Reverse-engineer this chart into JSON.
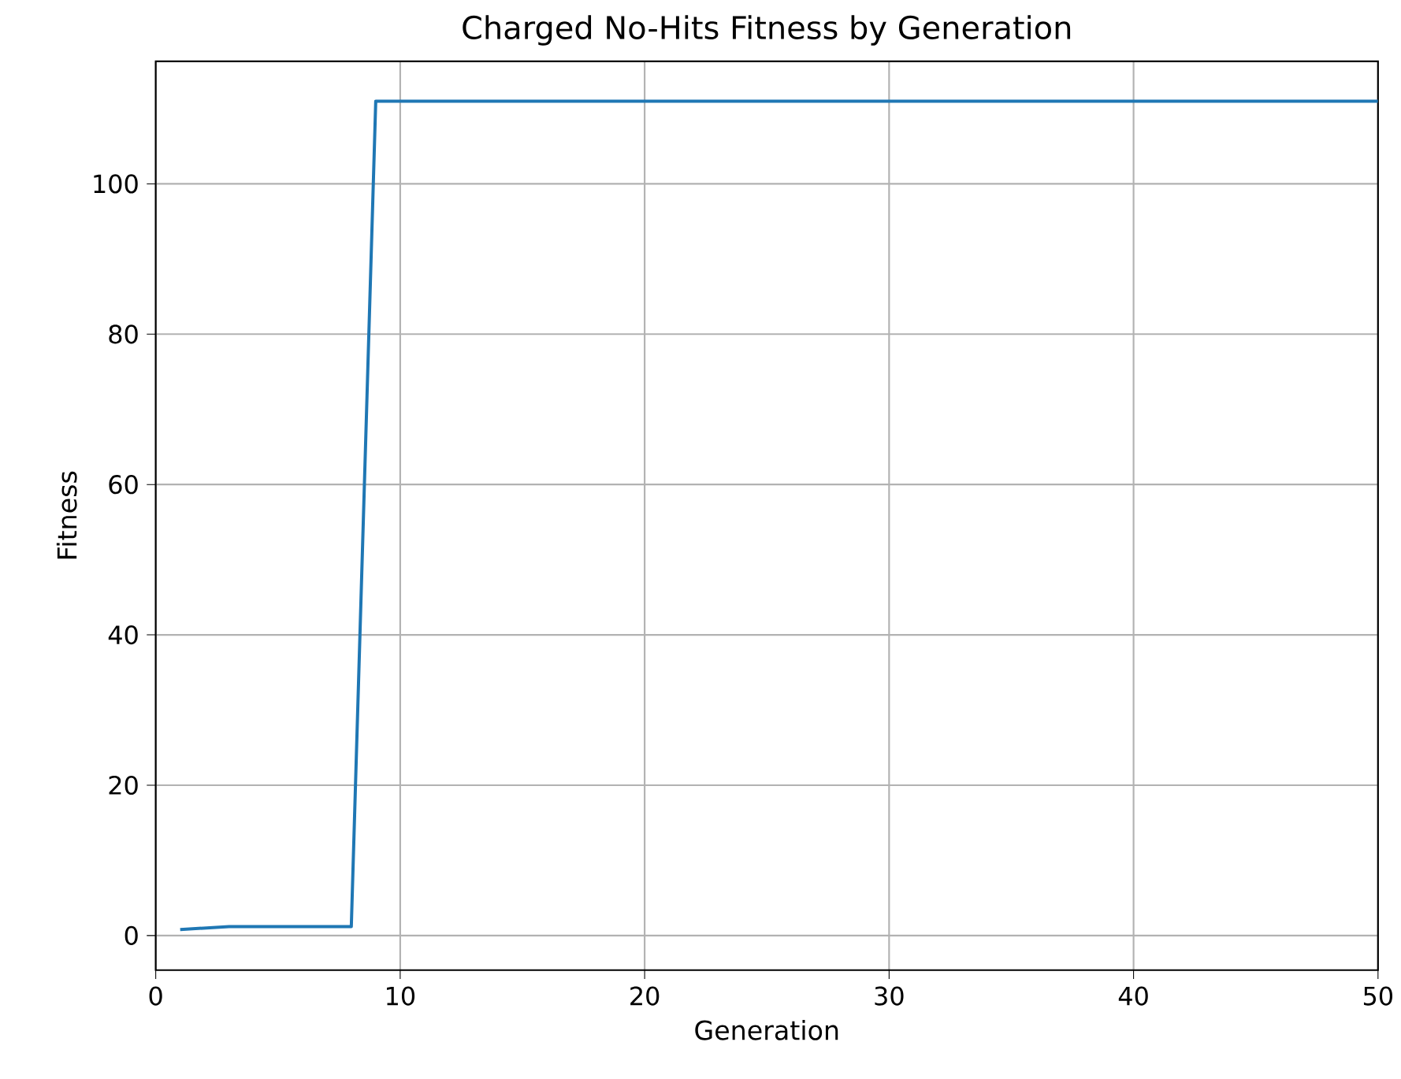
{
  "chart_data": {
    "type": "line",
    "title": "Charged No-Hits Fitness by Generation",
    "xlabel": "Generation",
    "ylabel": "Fitness",
    "x": [
      1,
      3,
      8,
      9,
      50
    ],
    "series": [
      {
        "color": "#1f77b4",
        "values": [
          0.8,
          1.2,
          1.2,
          111,
          111
        ]
      }
    ],
    "xlim": [
      0,
      50
    ],
    "ylim": [
      -4.6,
      116.3
    ],
    "xticks": [
      0,
      10,
      20,
      30,
      40,
      50
    ],
    "yticks": [
      0,
      20,
      40,
      60,
      80,
      100
    ],
    "grid": true,
    "marker": "none",
    "line_style": "solid"
  }
}
